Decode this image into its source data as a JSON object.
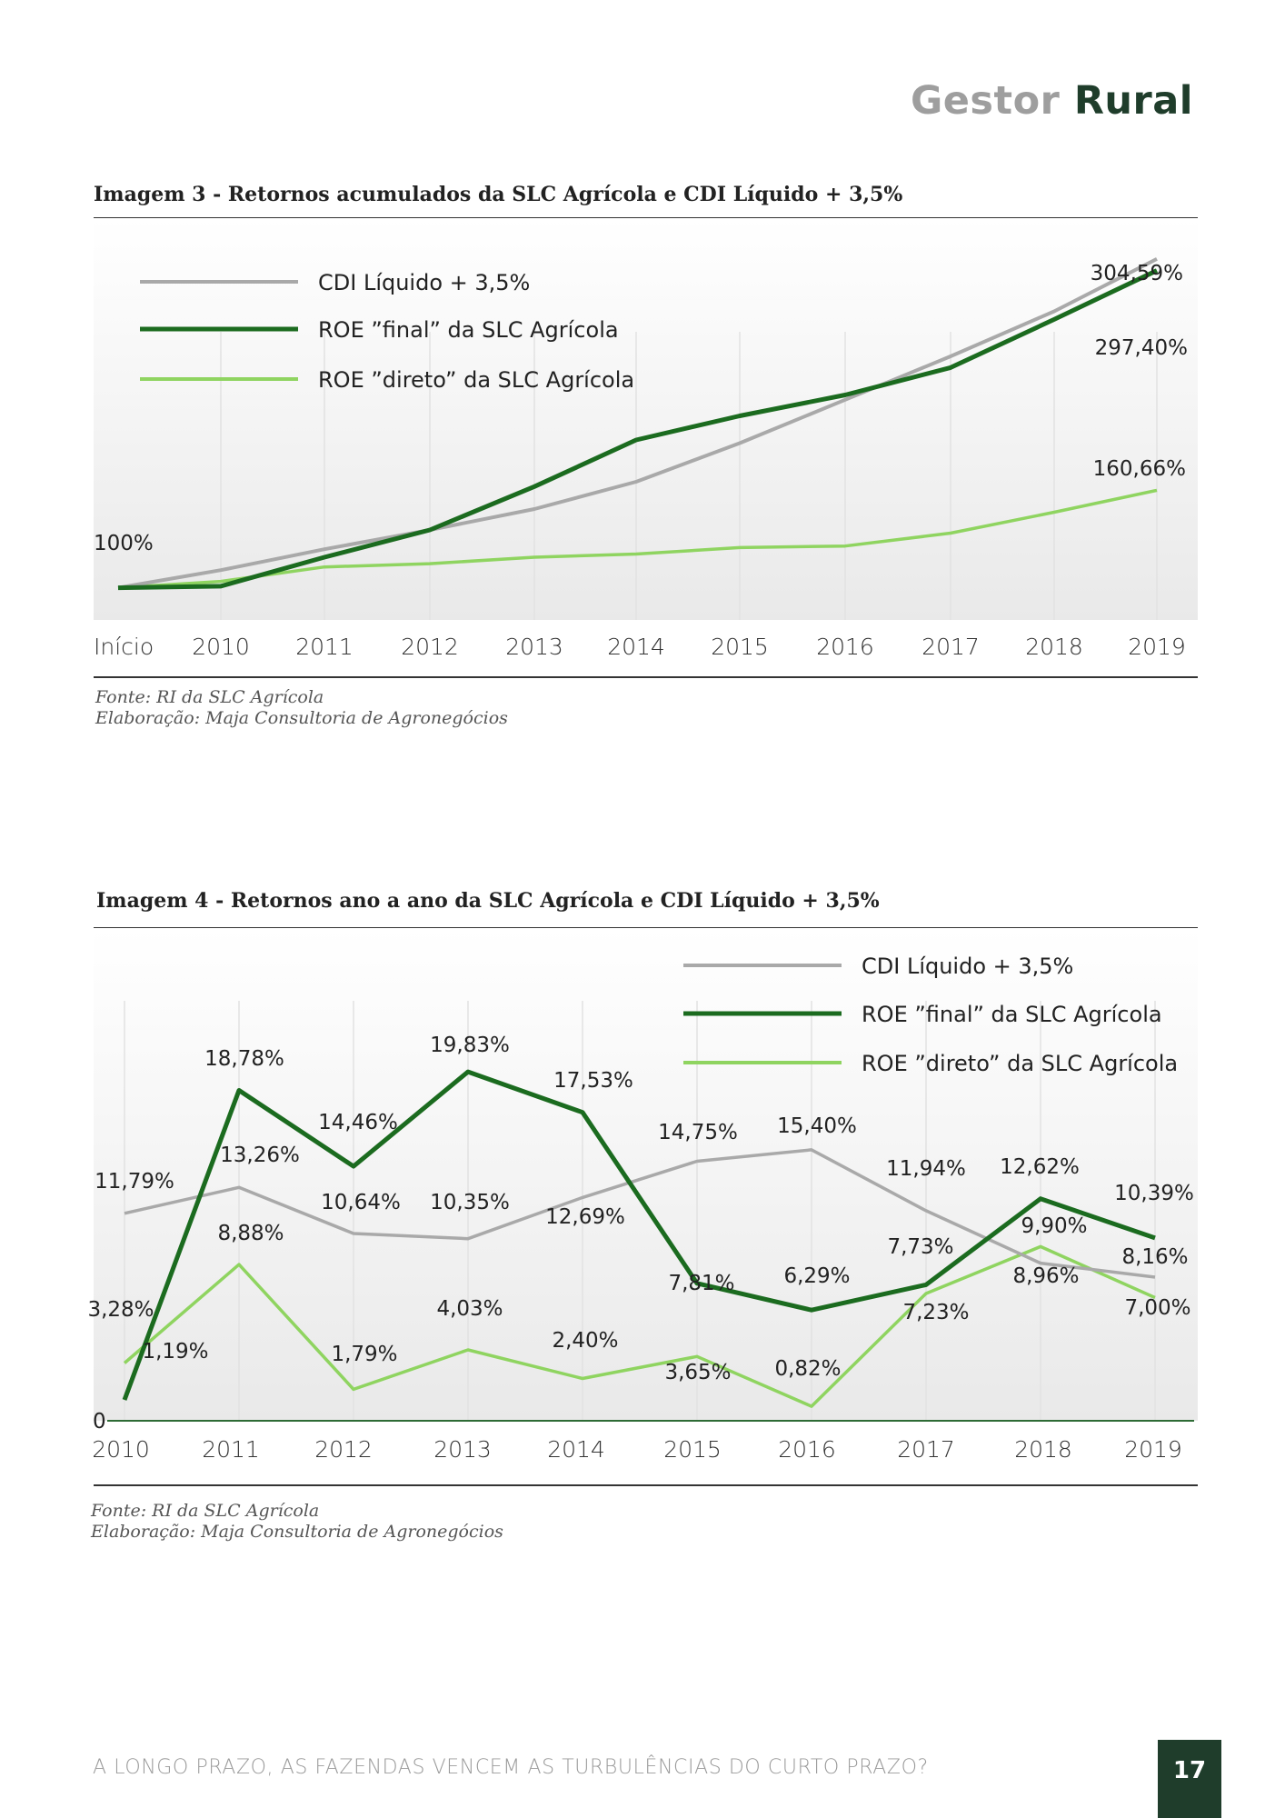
{
  "header": {
    "brand_part1": "Gestor",
    "brand_part2": "Rural"
  },
  "colors": {
    "cdi": "#a9a9a9",
    "roe_final": "#1b6b1f",
    "roe_direto": "#8fd460",
    "brand_dark": "#1f3d2b"
  },
  "figure3": {
    "title": "Imagem 3 - Retornos acumulados da SLC Agrícola e CDI Líquido + 3,5%",
    "source": "Fonte: RI da SLC Agrícola",
    "elaboration": "Elaboração: Maja Consultoria de Agronegócios"
  },
  "figure4": {
    "title": "Imagem 4 - Retornos ano a ano da SLC Agrícola e CDI Líquido + 3,5%",
    "source": "Fonte: RI da SLC Agrícola",
    "elaboration": "Elaboração: Maja Consultoria de Agronegócios"
  },
  "chart_data": [
    {
      "type": "line",
      "title": "Imagem 3 - Retornos acumulados da SLC Agrícola e CDI Líquido + 3,5%",
      "categories": [
        "Início",
        "2010",
        "2011",
        "2012",
        "2013",
        "2014",
        "2015",
        "2016",
        "2017",
        "2018",
        "2019"
      ],
      "ylim": [
        80,
        330
      ],
      "grid": "vertical",
      "legend": "top-left",
      "series": [
        {
          "name": "CDI Líquido + 3,5%",
          "key": "cdi",
          "values": [
            100,
            111,
            124,
            136,
            149,
            166,
            190,
            217,
            244,
            272,
            304.59
          ]
        },
        {
          "name": "ROE ”final” da SLC Agrícola",
          "key": "roe_final",
          "values": [
            100,
            101,
            119,
            136,
            163,
            192,
            207,
            220,
            237,
            267,
            297.4
          ]
        },
        {
          "name": "ROE ”direto” da SLC Agrícola",
          "key": "roe_direto",
          "values": [
            100,
            104,
            113,
            115,
            119,
            121,
            125,
            126,
            134,
            147,
            160.66
          ]
        }
      ],
      "annotations": [
        {
          "text": "100%",
          "series": "cdi",
          "index": 0
        },
        {
          "text": "304,59%",
          "series": "cdi",
          "index": 10
        },
        {
          "text": "297,40%",
          "series": "roe_final",
          "index": 10
        },
        {
          "text": "160,66%",
          "series": "roe_direto",
          "index": 10
        }
      ]
    },
    {
      "type": "line",
      "title": "Imagem 4 - Retornos ano a ano da SLC Agrícola e CDI Líquido + 3,5%",
      "categories": [
        "2010",
        "2011",
        "2012",
        "2013",
        "2014",
        "2015",
        "2016",
        "2017",
        "2018",
        "2019"
      ],
      "ylim": [
        0,
        28
      ],
      "y_ticks": [
        "0"
      ],
      "grid": "vertical",
      "legend": "top-right",
      "series": [
        {
          "name": "CDI Líquido + 3,5%",
          "key": "cdi",
          "values": [
            11.79,
            13.26,
            10.64,
            10.35,
            12.69,
            14.75,
            15.4,
            11.94,
            8.96,
            8.16
          ],
          "labels": [
            "11,79%",
            "13,26%",
            "10,64%",
            "10,35%",
            "12,69%",
            "14,75%",
            "15,40%",
            "11,94%",
            "8,96%",
            "8,16%"
          ]
        },
        {
          "name": "ROE ”final” da SLC Agrícola",
          "key": "roe_final",
          "values": [
            1.19,
            18.78,
            14.46,
            19.83,
            17.53,
            7.81,
            6.29,
            7.73,
            12.62,
            10.39
          ],
          "labels": [
            "1,19%",
            "18,78%",
            "14,46%",
            "19,83%",
            "17,53%",
            "7,81%",
            "6,29%",
            "7,73%",
            "12,62%",
            "10,39%"
          ]
        },
        {
          "name": "ROE ”direto” da SLC Agrícola",
          "key": "roe_direto",
          "values": [
            3.28,
            8.88,
            1.79,
            4.03,
            2.4,
            3.65,
            0.82,
            7.23,
            9.9,
            7.0
          ],
          "labels": [
            "3,28%",
            "8,88%",
            "1,79%",
            "4,03%",
            "2,40%",
            "3,65%",
            "0,82%",
            "7,23%",
            "9,90%",
            "7,00%"
          ]
        }
      ]
    }
  ],
  "footer": {
    "text": "A LONGO PRAZO, AS FAZENDAS VENCEM AS TURBULÊNCIAS DO CURTO PRAZO?",
    "page_number": "17"
  }
}
